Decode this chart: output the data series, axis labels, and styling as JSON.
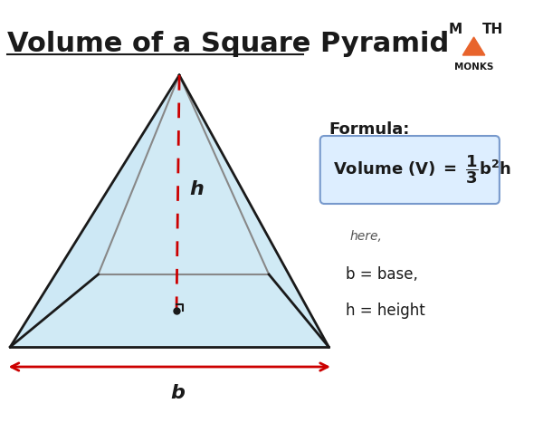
{
  "title": "Volume of a Square Pyramid",
  "bg_color": "#ffffff",
  "title_color": "#1a1a1a",
  "title_fontsize": 22,
  "pyramid_face_color": "#cce8f5",
  "pyramid_face_alpha": 0.85,
  "pyramid_edge_color": "#1a1a1a",
  "pyramid_edge_lw": 2.0,
  "pyramid_hidden_edge_color": "#888888",
  "pyramid_hidden_edge_lw": 1.5,
  "dashed_line_color": "#cc0000",
  "arrow_color": "#cc0000",
  "h_label": "h",
  "b_label": "b",
  "formula_label": "Formula:",
  "here_label": "here,",
  "b_def": "b = base,",
  "h_def": "h = height",
  "formula_box_color": "#ddeeff",
  "formula_box_edge": "#7799cc",
  "logo_triangle_color": "#e8642c",
  "logo_text_color": "#1a1a1a"
}
